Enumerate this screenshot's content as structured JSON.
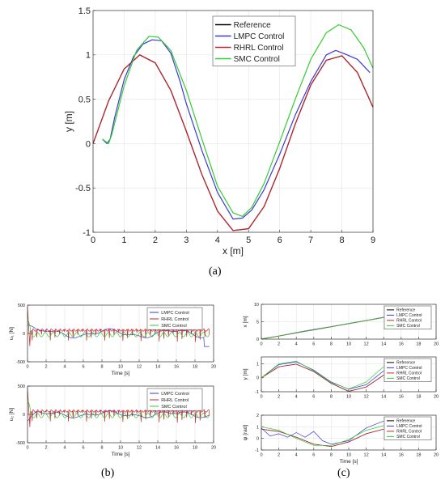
{
  "colors": {
    "reference": "#000000",
    "lmpc": "#3a3ad6",
    "rhrl": "#c0262e",
    "smc": "#33cc33",
    "axis": "#333333",
    "grid": "#e3e3e3"
  },
  "captions": {
    "a": "(a)",
    "b": "(b)",
    "c": "(c)"
  },
  "chart_data": [
    {
      "id": "a",
      "type": "line",
      "xlabel": "x [m]",
      "ylabel": "y [m]",
      "xlim": [
        0,
        9
      ],
      "ylim": [
        -1,
        1.5
      ],
      "xticks": [
        "0",
        "1",
        "2",
        "3",
        "4",
        "5",
        "6",
        "7",
        "8",
        "9"
      ],
      "yticks": [
        "-1",
        "-0.5",
        "0",
        "0.5",
        "1",
        "1.5"
      ],
      "grid": true,
      "legend_position": "top-right",
      "series": [
        {
          "name": "Reference",
          "key": "reference",
          "x": [
            0,
            0.5,
            1,
            1.5,
            2,
            2.5,
            3,
            3.5,
            4,
            4.5,
            5,
            5.5,
            6,
            6.5,
            7,
            7.5,
            8,
            8.5,
            9
          ],
          "y": [
            0,
            0.48,
            0.84,
            1,
            0.91,
            0.6,
            0.14,
            -0.35,
            -0.76,
            -0.98,
            -0.96,
            -0.71,
            -0.28,
            0.22,
            0.66,
            0.94,
            0.99,
            0.8,
            0.41
          ]
        },
        {
          "name": "LMPC Control",
          "key": "lmpc",
          "x": [
            0.3,
            0.45,
            0.55,
            0.7,
            1,
            1.3,
            1.6,
            1.9,
            2.2,
            2.5,
            2.8,
            3,
            3.5,
            4,
            4.5,
            4.8,
            5.1,
            5.5,
            6,
            6.5,
            7,
            7.5,
            7.8,
            8.1,
            8.5,
            8.9
          ],
          "y": [
            0.05,
            0,
            0.05,
            0.3,
            0.72,
            0.98,
            1.12,
            1.17,
            1.16,
            1.02,
            0.7,
            0.45,
            -0.08,
            -0.55,
            -0.85,
            -0.84,
            -0.75,
            -0.52,
            -0.12,
            0.32,
            0.7,
            1,
            1.05,
            1.01,
            0.95,
            0.8
          ]
        },
        {
          "name": "RHRL Control",
          "key": "rhrl",
          "x": [
            0,
            0.5,
            1,
            1.5,
            2,
            2.5,
            3,
            3.5,
            4,
            4.5,
            5,
            5.5,
            6,
            6.5,
            7,
            7.5,
            8,
            8.5,
            9
          ],
          "y": [
            0,
            0.48,
            0.84,
            1,
            0.91,
            0.6,
            0.14,
            -0.35,
            -0.76,
            -0.98,
            -0.96,
            -0.71,
            -0.28,
            0.22,
            0.66,
            0.94,
            0.99,
            0.8,
            0.41
          ]
        },
        {
          "name": "SMC Control",
          "key": "smc",
          "x": [
            0.3,
            0.5,
            0.6,
            1,
            1.4,
            1.8,
            2.1,
            2.5,
            3,
            3.5,
            4,
            4.5,
            4.8,
            5.1,
            5.5,
            6,
            6.5,
            7,
            7.5,
            7.9,
            8.3,
            8.7,
            9
          ],
          "y": [
            0.05,
            0,
            0.1,
            0.65,
            1.05,
            1.21,
            1.2,
            1.05,
            0.6,
            0.05,
            -0.48,
            -0.78,
            -0.82,
            -0.72,
            -0.45,
            0.02,
            0.5,
            0.95,
            1.25,
            1.34,
            1.28,
            1.08,
            0.85
          ]
        }
      ]
    },
    {
      "id": "b1",
      "type": "line",
      "xlabel": "Time [s]",
      "ylabel": "u₁ [N]",
      "xlim": [
        0,
        20
      ],
      "ylim": [
        -500,
        500
      ],
      "xticks": [
        "0",
        "2",
        "4",
        "6",
        "8",
        "10",
        "12",
        "14",
        "16",
        "18",
        "20"
      ],
      "yticks": [
        "-500",
        "0",
        "500"
      ],
      "grid": true,
      "legend_position": "top-right",
      "series": [
        {
          "name": "LMPC Control",
          "key": "lmpc"
        },
        {
          "name": "RHRL Control",
          "key": "rhrl"
        },
        {
          "name": "SMC Control",
          "key": "smc"
        }
      ]
    },
    {
      "id": "b2",
      "type": "line",
      "xlabel": "Time [s]",
      "ylabel": "u₂ [N]",
      "xlim": [
        0,
        20
      ],
      "ylim": [
        -500,
        500
      ],
      "xticks": [
        "0",
        "2",
        "4",
        "6",
        "8",
        "10",
        "12",
        "14",
        "16",
        "18",
        "20"
      ],
      "yticks": [
        "-500",
        "0",
        "500"
      ],
      "grid": true,
      "legend_position": "top-right",
      "series": [
        {
          "name": "LMPC Control",
          "key": "lmpc"
        },
        {
          "name": "RHRL Control",
          "key": "rhrl"
        },
        {
          "name": "SMC Control",
          "key": "smc"
        }
      ]
    },
    {
      "id": "c1",
      "type": "line",
      "xlabel": "",
      "ylabel": "x [m]",
      "xlim": [
        0,
        20
      ],
      "ylim": [
        0,
        10
      ],
      "xticks": [
        "0",
        "2",
        "4",
        "6",
        "8",
        "10",
        "12",
        "14",
        "16",
        "18",
        "20"
      ],
      "yticks": [
        "0",
        "5",
        "10"
      ],
      "grid": true,
      "legend_position": "right",
      "series": [
        {
          "name": "Reference",
          "key": "reference",
          "x": [
            0,
            14
          ],
          "y": [
            0,
            6.2
          ]
        },
        {
          "name": "LMPC Control",
          "key": "lmpc",
          "x": [
            0,
            2,
            4,
            6,
            8,
            10,
            12,
            14
          ],
          "y": [
            0.1,
            0.9,
            1.9,
            2.8,
            3.6,
            4.5,
            5.4,
            6.3
          ]
        },
        {
          "name": "RHRL Control",
          "key": "rhrl",
          "x": [
            0,
            14
          ],
          "y": [
            0,
            6.2
          ]
        },
        {
          "name": "SMC Control",
          "key": "smc",
          "x": [
            0,
            14
          ],
          "y": [
            0.05,
            6.25
          ]
        }
      ]
    },
    {
      "id": "c2",
      "type": "line",
      "xlabel": "",
      "ylabel": "y [m]",
      "xlim": [
        0,
        20
      ],
      "ylim": [
        -1,
        1.5
      ],
      "xticks": [
        "0",
        "2",
        "4",
        "6",
        "8",
        "10",
        "12",
        "14",
        "16",
        "18",
        "20"
      ],
      "yticks": [
        "-1",
        "0",
        "1"
      ],
      "grid": true,
      "legend_position": "right",
      "series": [
        {
          "name": "Reference",
          "key": "reference",
          "x": [
            0,
            2,
            4,
            6,
            8,
            10,
            12,
            14
          ],
          "y": [
            0,
            0.79,
            0.98,
            0.45,
            -0.4,
            -0.97,
            -0.66,
            0.2
          ]
        },
        {
          "name": "LMPC Control",
          "key": "lmpc",
          "x": [
            0,
            2,
            4,
            6,
            8,
            10,
            12,
            14
          ],
          "y": [
            0,
            0.95,
            1.15,
            0.55,
            -0.3,
            -0.82,
            -0.5,
            0.5
          ]
        },
        {
          "name": "RHRL Control",
          "key": "rhrl",
          "x": [
            0,
            2,
            4,
            6,
            8,
            10,
            12,
            14
          ],
          "y": [
            0,
            0.79,
            0.98,
            0.45,
            -0.4,
            -0.97,
            -0.66,
            0.2
          ]
        },
        {
          "name": "SMC Control",
          "key": "smc",
          "x": [
            0,
            2,
            4,
            6,
            8,
            10,
            12,
            14
          ],
          "y": [
            0,
            1.0,
            1.2,
            0.5,
            -0.35,
            -0.8,
            -0.3,
            0.8
          ]
        }
      ]
    },
    {
      "id": "c3",
      "type": "line",
      "xlabel": "Time [s]",
      "ylabel": "ψ [rad]",
      "xlim": [
        0,
        20
      ],
      "ylim": [
        -1,
        2
      ],
      "xticks": [
        "0",
        "2",
        "4",
        "6",
        "8",
        "10",
        "12",
        "14",
        "16",
        "18",
        "20"
      ],
      "yticks": [
        "-1",
        "0",
        "1",
        "2"
      ],
      "grid": true,
      "legend_position": "right",
      "series": [
        {
          "name": "Reference",
          "key": "reference",
          "x": [
            0,
            2,
            4,
            6,
            8,
            10,
            12,
            14
          ],
          "y": [
            0.8,
            0.6,
            0.1,
            -0.5,
            -0.7,
            -0.3,
            0.4,
            0.8
          ]
        },
        {
          "name": "LMPC Control",
          "key": "lmpc",
          "x": [
            0,
            1,
            2,
            3,
            4,
            5,
            6,
            7,
            8,
            10,
            12,
            14
          ],
          "y": [
            0.9,
            0.2,
            0.4,
            0.1,
            0.5,
            0.1,
            0.6,
            -0.2,
            -0.5,
            -0.2,
            0.9,
            1.5
          ]
        },
        {
          "name": "RHRL Control",
          "key": "rhrl",
          "x": [
            0,
            2,
            4,
            6,
            8,
            10,
            12,
            14
          ],
          "y": [
            0.8,
            0.6,
            0.1,
            -0.5,
            -0.7,
            -0.3,
            0.4,
            0.8
          ]
        },
        {
          "name": "SMC Control",
          "key": "smc",
          "x": [
            0,
            2,
            4,
            6,
            8,
            10,
            12,
            14
          ],
          "y": [
            1.0,
            0.7,
            0.0,
            -0.6,
            -0.6,
            -0.1,
            0.7,
            1.1
          ]
        }
      ]
    }
  ]
}
